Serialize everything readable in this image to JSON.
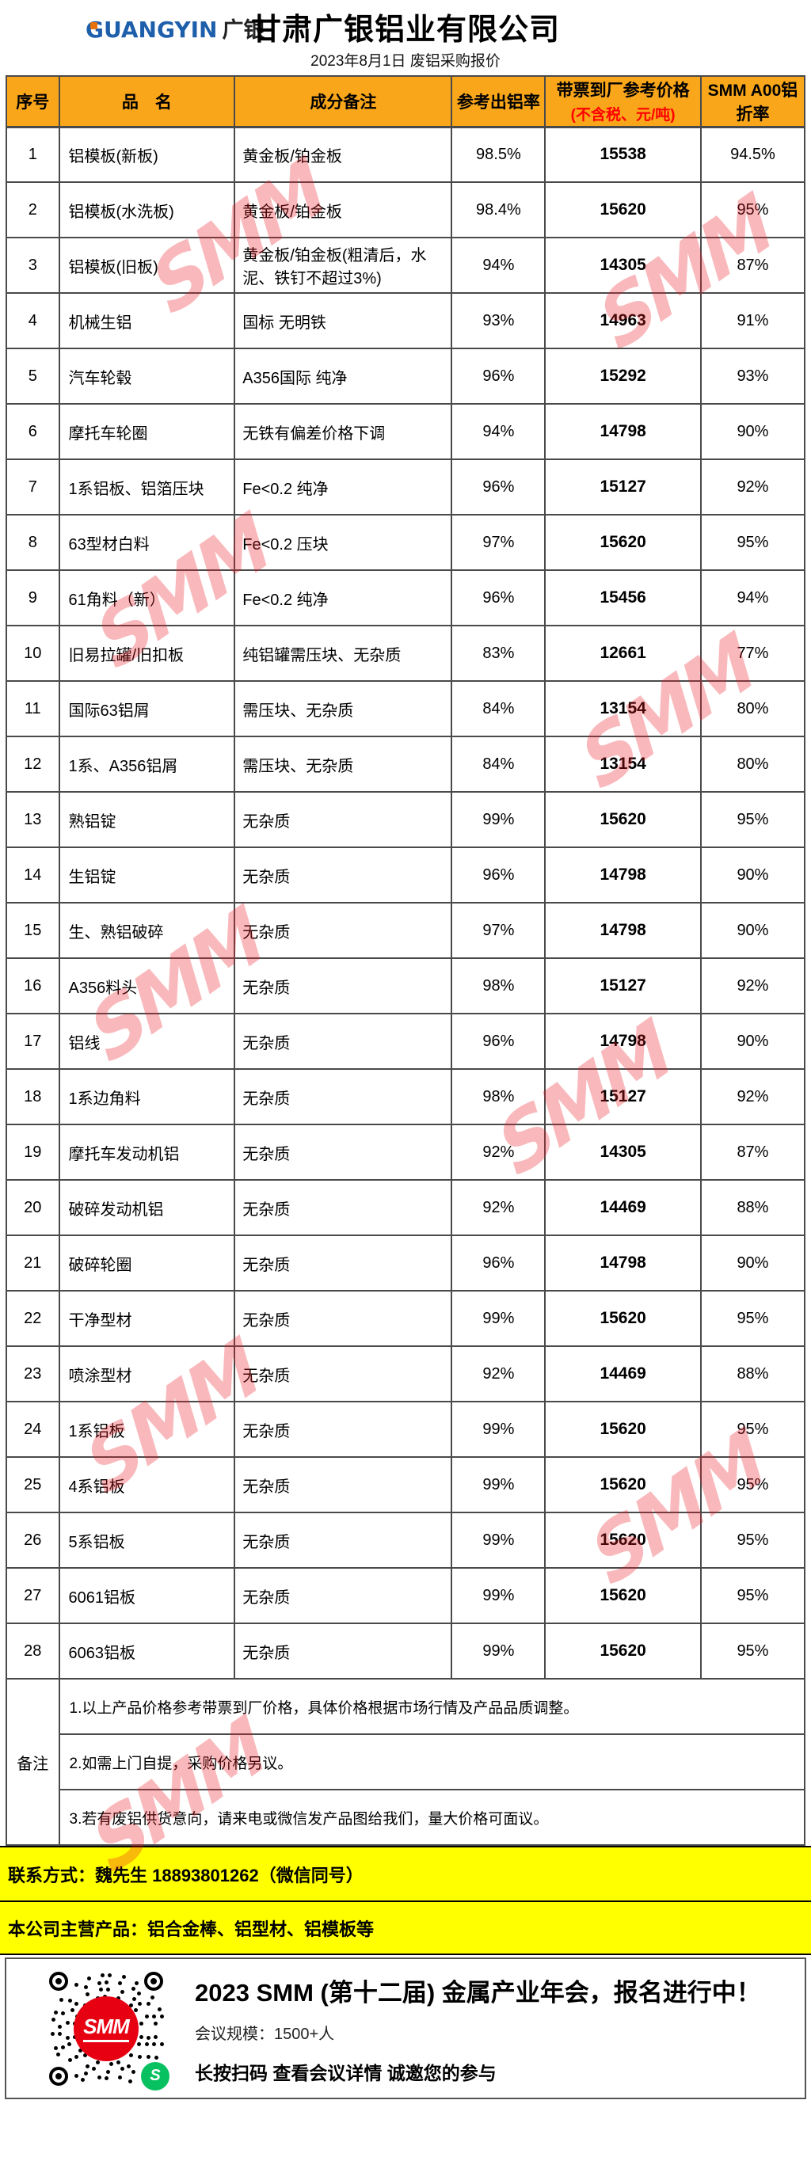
{
  "watermark": {
    "text": "SMM"
  },
  "colors": {
    "header_orange": "#F9A61A",
    "highlight_yellow": "#FFFF00",
    "price_note_red": "#FF0000",
    "watermark_red": "#ED1C24"
  },
  "header": {
    "logo_en": "GUANGYIN",
    "logo_cn": "广银",
    "title": "甘肃广银铝业有限公司",
    "subtitle": "2023年8月1日 废铝采购报价"
  },
  "table": {
    "headers": {
      "no": "序号",
      "name": "品　名",
      "note": "成分备注",
      "yield": "参考出铝率",
      "price_line1": "带票到厂参考价格",
      "price_line2": "(不含税、元/吨)",
      "ratio_line1": "SMM A00铝",
      "ratio_line2": "折率"
    },
    "rows": [
      {
        "no": "1",
        "name": "铝模板(新板)",
        "note": "黄金板/铂金板",
        "yield": "98.5%",
        "price": "15538",
        "ratio": "94.5%"
      },
      {
        "no": "2",
        "name": "铝模板(水洗板)",
        "note": "黄金板/铂金板",
        "yield": "98.4%",
        "price": "15620",
        "ratio": "95%"
      },
      {
        "no": "3",
        "name": "铝模板(旧板)",
        "note": "黄金板/铂金板(粗清后，水泥、铁钉不超过3%)",
        "yield": "94%",
        "price": "14305",
        "ratio": "87%"
      },
      {
        "no": "4",
        "name": "机械生铝",
        "note": "国标 无明铁",
        "yield": "93%",
        "price": "14963",
        "ratio": "91%"
      },
      {
        "no": "5",
        "name": "汽车轮毂",
        "note": "A356国际 纯净",
        "yield": "96%",
        "price": "15292",
        "ratio": "93%"
      },
      {
        "no": "6",
        "name": "摩托车轮圈",
        "note": "无铁有偏差价格下调",
        "yield": "94%",
        "price": "14798",
        "ratio": "90%"
      },
      {
        "no": "7",
        "name": "1系铝板、铝箔压块",
        "note": "Fe<0.2 纯净",
        "yield": "96%",
        "price": "15127",
        "ratio": "92%"
      },
      {
        "no": "8",
        "name": "63型材白料",
        "note": "Fe<0.2 压块",
        "yield": "97%",
        "price": "15620",
        "ratio": "95%"
      },
      {
        "no": "9",
        "name": "61角料（新）",
        "note": "Fe<0.2 纯净",
        "yield": "96%",
        "price": "15456",
        "ratio": "94%"
      },
      {
        "no": "10",
        "name": "旧易拉罐/旧扣板",
        "note": "纯铝罐需压块、无杂质",
        "yield": "83%",
        "price": "12661",
        "ratio": "77%"
      },
      {
        "no": "11",
        "name": "国际63铝屑",
        "note": "需压块、无杂质",
        "yield": "84%",
        "price": "13154",
        "ratio": "80%"
      },
      {
        "no": "12",
        "name": "1系、A356铝屑",
        "note": "需压块、无杂质",
        "yield": "84%",
        "price": "13154",
        "ratio": "80%"
      },
      {
        "no": "13",
        "name": "熟铝锭",
        "note": "无杂质",
        "yield": "99%",
        "price": "15620",
        "ratio": "95%"
      },
      {
        "no": "14",
        "name": "生铝锭",
        "note": "无杂质",
        "yield": "96%",
        "price": "14798",
        "ratio": "90%"
      },
      {
        "no": "15",
        "name": "生、熟铝破碎",
        "note": "无杂质",
        "yield": "97%",
        "price": "14798",
        "ratio": "90%"
      },
      {
        "no": "16",
        "name": "A356料头",
        "note": "无杂质",
        "yield": "98%",
        "price": "15127",
        "ratio": "92%"
      },
      {
        "no": "17",
        "name": "铝线",
        "note": "无杂质",
        "yield": "96%",
        "price": "14798",
        "ratio": "90%"
      },
      {
        "no": "18",
        "name": "1系边角料",
        "note": "无杂质",
        "yield": "98%",
        "price": "15127",
        "ratio": "92%"
      },
      {
        "no": "19",
        "name": "摩托车发动机铝",
        "note": "无杂质",
        "yield": "92%",
        "price": "14305",
        "ratio": "87%"
      },
      {
        "no": "20",
        "name": "破碎发动机铝",
        "note": "无杂质",
        "yield": "92%",
        "price": "14469",
        "ratio": "88%"
      },
      {
        "no": "21",
        "name": "破碎轮圈",
        "note": "无杂质",
        "yield": "96%",
        "price": "14798",
        "ratio": "90%"
      },
      {
        "no": "22",
        "name": "干净型材",
        "note": "无杂质",
        "yield": "99%",
        "price": "15620",
        "ratio": "95%"
      },
      {
        "no": "23",
        "name": "喷涂型材",
        "note": "无杂质",
        "yield": "92%",
        "price": "14469",
        "ratio": "88%"
      },
      {
        "no": "24",
        "name": "1系铝板",
        "note": "无杂质",
        "yield": "99%",
        "price": "15620",
        "ratio": "95%"
      },
      {
        "no": "25",
        "name": "4系铝板",
        "note": "无杂质",
        "yield": "99%",
        "price": "15620",
        "ratio": "95%"
      },
      {
        "no": "26",
        "name": "5系铝板",
        "note": "无杂质",
        "yield": "99%",
        "price": "15620",
        "ratio": "95%"
      },
      {
        "no": "27",
        "name": "6061铝板",
        "note": "无杂质",
        "yield": "99%",
        "price": "15620",
        "ratio": "95%"
      },
      {
        "no": "28",
        "name": "6063铝板",
        "note": "无杂质",
        "yield": "99%",
        "price": "15620",
        "ratio": "95%"
      }
    ]
  },
  "remarks": {
    "label": "备注",
    "items": [
      "1.以上产品价格参考带票到厂价格，具体价格根据市场行情及产品品质调整。",
      "2.如需上门自提，采购价格另议。",
      "3.若有废铝供货意向，请来电或微信发产品图给我们，量大价格可面议。"
    ]
  },
  "contact_bar": "联系方式：魏先生 18893801262（微信同号）",
  "products_bar": "本公司主营产品：铝合金棒、铝型材、铝模板等",
  "footer": {
    "qr_center_label": "SMM",
    "event_title": "2023 SMM (第十二届) 金属产业年会，报名进行中！",
    "event_scale": "会议规模：1500+人",
    "event_cta": "长按扫码  查看会议详情  诚邀您的参与"
  }
}
